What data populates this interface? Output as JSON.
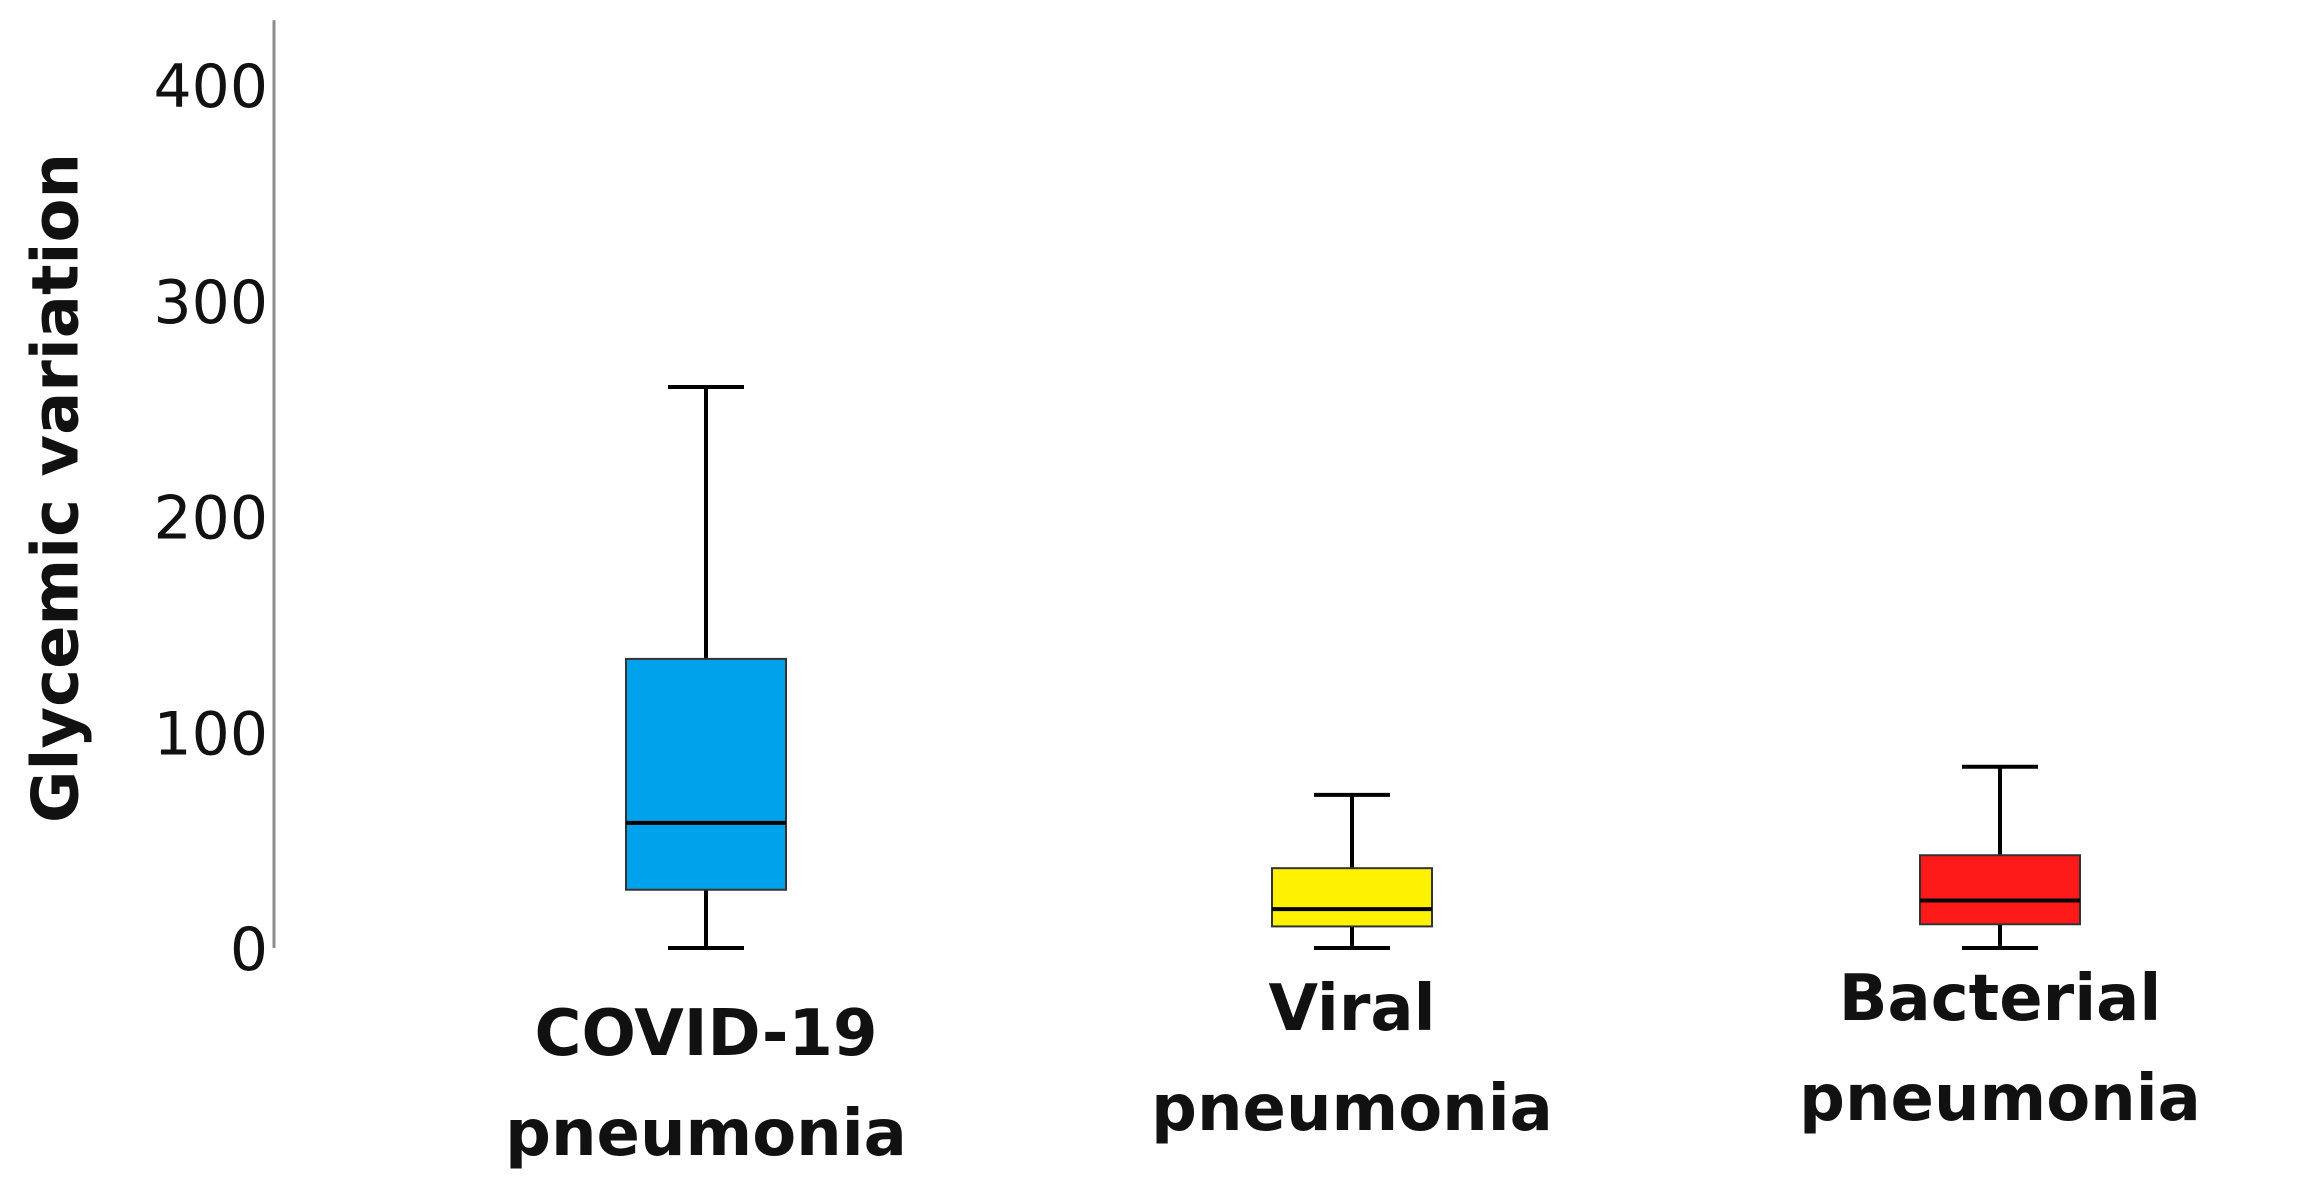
{
  "chart_data": {
    "type": "box",
    "title": "",
    "xlabel": "",
    "ylabel": "Glycemic variation",
    "ylim": [
      0,
      430
    ],
    "yticks": [
      0,
      100,
      200,
      300,
      400
    ],
    "ytick_labels": [
      "0",
      "100",
      "200",
      "300",
      "400"
    ],
    "grid": false,
    "categories": [
      {
        "label_lines": [
          "COVID-19",
          "pneumonia"
        ],
        "color": "#00A2EC",
        "min": 0,
        "q1": 27,
        "median": 58,
        "q3": 134,
        "max": 260
      },
      {
        "label_lines": [
          "Viral",
          "pneumonia"
        ],
        "color": "#FFF200",
        "min": 0,
        "q1": 10,
        "median": 18,
        "q3": 37,
        "max": 71
      },
      {
        "label_lines": [
          "Bacterial",
          "pneumonia"
        ],
        "color": "#FF1A1A",
        "min": 0,
        "q1": 11,
        "median": 22,
        "q3": 43,
        "max": 84
      }
    ]
  }
}
